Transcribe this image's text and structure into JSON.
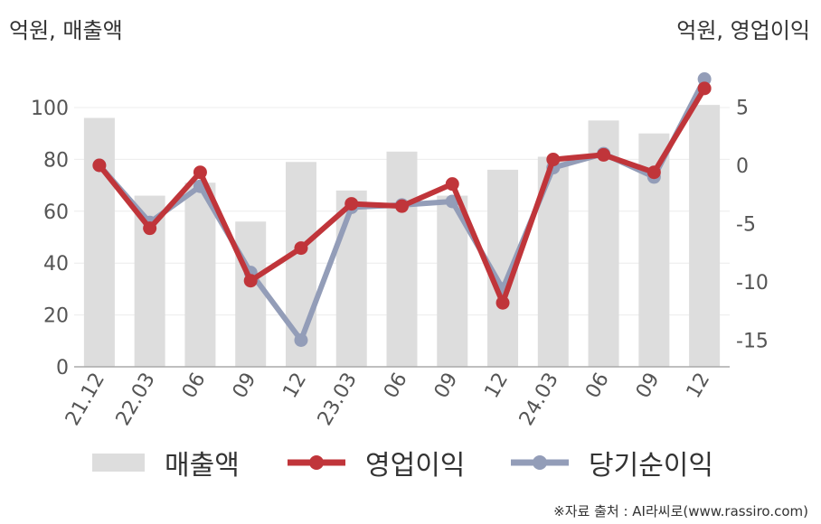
{
  "unit_left": "억원, 매출액",
  "unit_right": "억원, 영업이익",
  "source": "※자료 출처 : AI라씨로(www.rassiro.com)",
  "legend": {
    "revenue": "매출액",
    "operating": "영업이익",
    "net": "당기순이익"
  },
  "colors": {
    "revenue": "#dddddd",
    "operating": "#c0353a",
    "net": "#939db8"
  },
  "chart_data": {
    "type": "bar+line",
    "categories": [
      "21.12",
      "22.03",
      "06",
      "09",
      "12",
      "23.03",
      "06",
      "09",
      "12",
      "24.03",
      "06",
      "09",
      "12"
    ],
    "series": [
      {
        "name": "매출액",
        "type": "bar",
        "axis": "left",
        "values": [
          96,
          66,
          71,
          56,
          79,
          68,
          83,
          66,
          76,
          81,
          95,
          90,
          101
        ]
      },
      {
        "name": "영업이익",
        "type": "line",
        "axis": "right",
        "values": [
          0,
          -5.4,
          -0.6,
          -9.9,
          -7.1,
          -3.3,
          -3.5,
          -1.6,
          -11.8,
          0.5,
          0.9,
          -0.6,
          6.6
        ]
      },
      {
        "name": "당기순이익",
        "type": "line",
        "axis": "right",
        "values": [
          0,
          -4.9,
          -1.8,
          -9.2,
          -15,
          -3.6,
          -3.4,
          -3.1,
          -10.6,
          -0.2,
          1.0,
          -1.0,
          7.4
        ]
      }
    ],
    "left_axis": {
      "ticks": [
        "0",
        "20",
        "40",
        "60",
        "80",
        "100"
      ],
      "range": [
        0,
        100
      ]
    },
    "right_axis": {
      "ticks": [
        "-15",
        "-10",
        "-5",
        "0",
        "5"
      ],
      "range": [
        -17.15,
        5
      ]
    },
    "grid": true,
    "legend_position": "bottom"
  }
}
